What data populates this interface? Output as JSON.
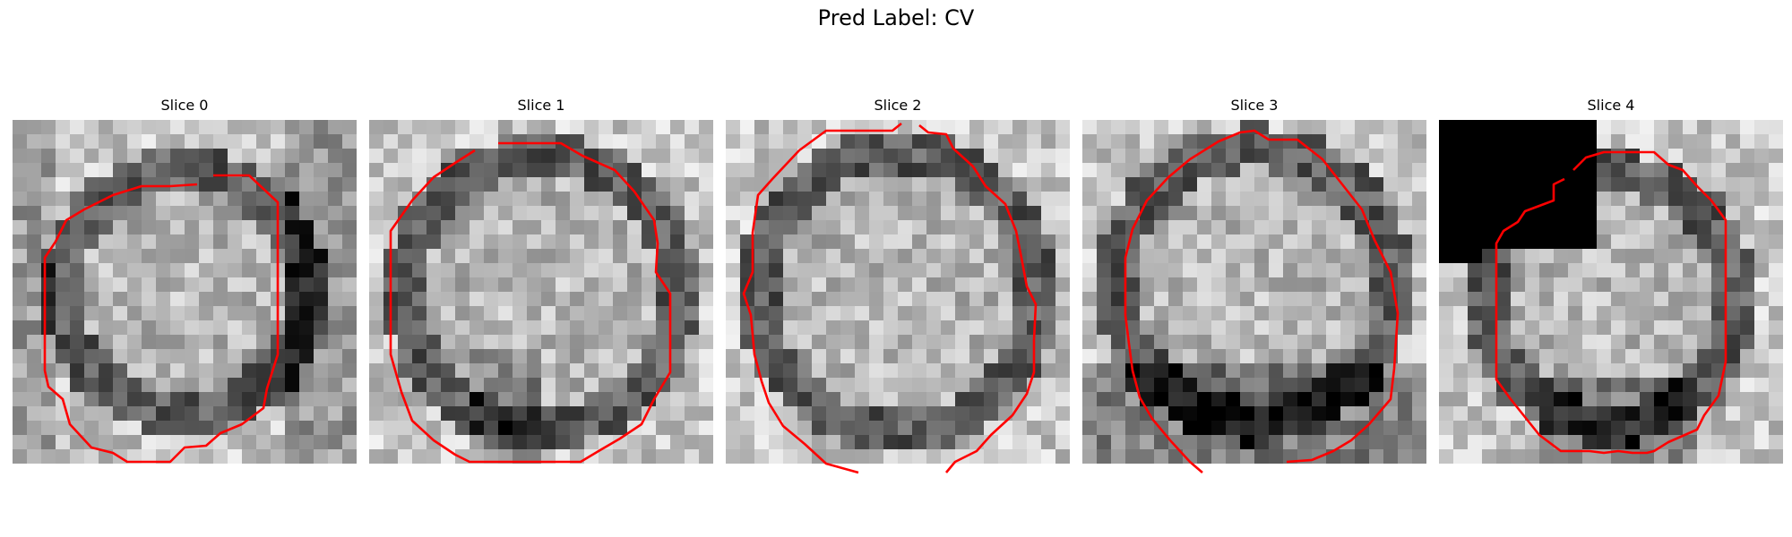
{
  "figure": {
    "suptitle": "Pred Label: CV",
    "overlay_color": "#ff0000",
    "colormap": "gray",
    "panels": [
      {
        "title": "Slice 0"
      },
      {
        "title": "Slice 1"
      },
      {
        "title": "Slice 2"
      },
      {
        "title": "Slice 3"
      },
      {
        "title": "Slice 4"
      }
    ]
  }
}
